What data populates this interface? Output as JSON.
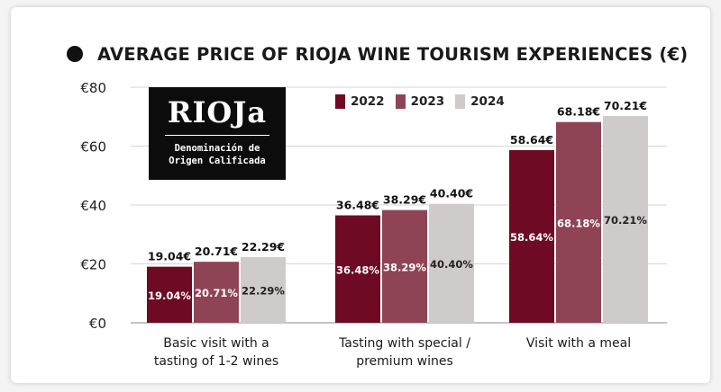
{
  "logo": {
    "mark": "RIOJa",
    "sub_line1": "Denominación de",
    "sub_line2": "Origen Calificada"
  },
  "colors": {
    "2022": "#6e0a23",
    "2023": "#8f4456",
    "2024": "#cfcbcb",
    "axis_text": "#222222",
    "grid": "#d6d6d6"
  },
  "chart_data": {
    "type": "bar",
    "title": "AVERAGE PRICE OF RIOJA WINE TOURISM EXPERIENCES (€)",
    "xlabel": "",
    "ylabel": "",
    "ylim": [
      0,
      80
    ],
    "yticks": [
      {
        "value": 0,
        "label": "€0"
      },
      {
        "value": 20,
        "label": "€20"
      },
      {
        "value": 40,
        "label": "€40"
      },
      {
        "value": 60,
        "label": "€60"
      },
      {
        "value": 80,
        "label": "€80"
      }
    ],
    "grid": true,
    "legend_position": "top-center",
    "categories": [
      [
        "Basic visit with a",
        "tasting of 1-2 wines"
      ],
      [
        "Tasting with special /",
        "premium wines"
      ],
      [
        "Visit with a meal"
      ]
    ],
    "series": [
      {
        "name": "2022",
        "values": [
          19.04,
          36.48,
          58.64
        ],
        "labels": [
          "19.04€",
          "36.48€",
          "58.64€"
        ],
        "inner_labels": [
          "19.04%",
          "36.48%",
          "58.64%"
        ]
      },
      {
        "name": "2023",
        "values": [
          20.71,
          38.29,
          68.18
        ],
        "labels": [
          "20.71€",
          "38.29€",
          "68.18€"
        ],
        "inner_labels": [
          "20.71%",
          "38.29%",
          "68.18%"
        ]
      },
      {
        "name": "2024",
        "values": [
          22.29,
          40.4,
          70.21
        ],
        "labels": [
          "22.29€",
          "40.40€",
          "70.21€"
        ],
        "inner_labels": [
          "22.29%",
          "40.40%",
          "70.21%"
        ]
      }
    ]
  }
}
